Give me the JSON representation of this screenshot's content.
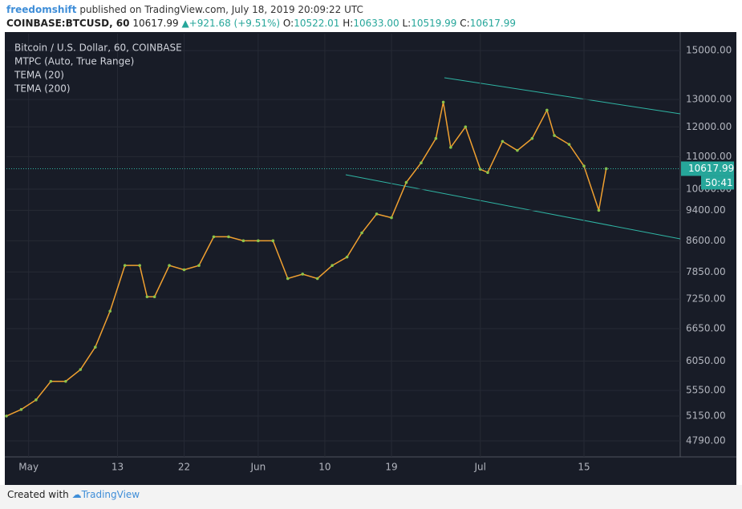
{
  "header": {
    "author": "freedomshift",
    "published": "published on TradingView.com, July 18, 2019 20:09:22 UTC",
    "symbol": "COINBASE:BTCUSD, 60",
    "price": "10617.99",
    "change": "+921.68 (+9.51%)",
    "o_label": "O:",
    "o": "10522.01",
    "h_label": "H:",
    "h": "10633.00",
    "l_label": "L:",
    "l": "10519.99",
    "c_label": "C:",
    "c": "10617.99"
  },
  "legend": [
    "Bitcoin / U.S. Dollar, 60, COINBASE",
    "MTPC (Auto, True Range)",
    "TEMA (20)",
    "TEMA (200)"
  ],
  "chart_data": {
    "type": "line",
    "log_scale": true,
    "grid": true,
    "color": "#f0a030",
    "x": [
      "04-28",
      "04-30",
      "05-02",
      "05-04",
      "05-06",
      "05-08",
      "05-10",
      "05-12",
      "05-14",
      "05-16",
      "05-17",
      "05-18",
      "05-20",
      "05-22",
      "05-24",
      "05-26",
      "05-28",
      "05-30",
      "06-01",
      "06-03",
      "06-05",
      "06-07",
      "06-09",
      "06-11",
      "06-13",
      "06-15",
      "06-17",
      "06-19",
      "06-21",
      "06-23",
      "06-25",
      "06-26",
      "06-27",
      "06-29",
      "07-01",
      "07-02",
      "07-04",
      "07-06",
      "07-08",
      "07-10",
      "07-11",
      "07-13",
      "07-15",
      "07-17",
      "07-18"
    ],
    "values": [
      5150,
      5250,
      5400,
      5700,
      5700,
      5900,
      6300,
      7000,
      8000,
      8000,
      7300,
      7300,
      8000,
      7900,
      8000,
      8700,
      8700,
      8600,
      8600,
      8600,
      7700,
      7800,
      7700,
      8000,
      8200,
      8800,
      9300,
      9200,
      10200,
      10800,
      11600,
      12900,
      11300,
      12000,
      10600,
      10500,
      11500,
      11200,
      11600,
      12600,
      11700,
      11400,
      10700,
      9400,
      10618
    ],
    "xlim": [
      "04-28",
      "07-28"
    ],
    "xticks": [
      {
        "value": "05-01",
        "label": "May"
      },
      {
        "value": "05-13",
        "label": "13"
      },
      {
        "value": "05-22",
        "label": "22"
      },
      {
        "value": "06-01",
        "label": "Jun"
      },
      {
        "value": "06-10",
        "label": "10"
      },
      {
        "value": "06-19",
        "label": "19"
      },
      {
        "value": "07-01",
        "label": "Jul"
      },
      {
        "value": "07-15",
        "label": "15"
      }
    ],
    "ylim": [
      4570,
      15760
    ],
    "yticks": [
      {
        "value": 4790,
        "label": "4790.00"
      },
      {
        "value": 5150,
        "label": "5150.00"
      },
      {
        "value": 5550,
        "label": "5550.00"
      },
      {
        "value": 6050,
        "label": "6050.00"
      },
      {
        "value": 6650,
        "label": "6650.00"
      },
      {
        "value": 7250,
        "label": "7250.00"
      },
      {
        "value": 7850,
        "label": "7850.00"
      },
      {
        "value": 8600,
        "label": "8600.00"
      },
      {
        "value": 9400,
        "label": "9400.00"
      },
      {
        "value": 10000,
        "label": "10000.00"
      },
      {
        "value": 11000,
        "label": "11000.00"
      },
      {
        "value": 12000,
        "label": "12000.00"
      },
      {
        "value": 13000,
        "label": "13000.00"
      },
      {
        "value": 15000,
        "label": "15000.00"
      }
    ],
    "last_price": {
      "value": 10617.99,
      "label": "10617.99"
    },
    "countdown": "50:41"
  },
  "footer": {
    "created": "Created with",
    "brand": "TradingView"
  }
}
